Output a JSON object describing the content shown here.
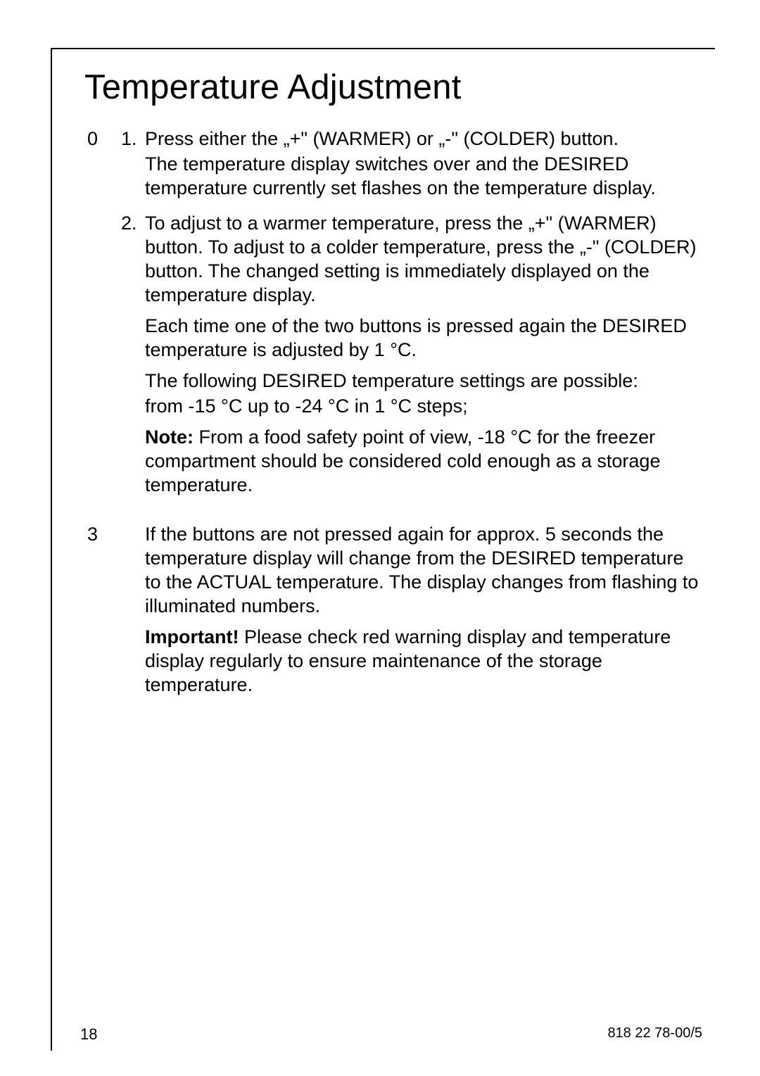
{
  "title": "Temperature Adjustment",
  "margin_marker": "0",
  "steps": {
    "one": {
      "num": "1.",
      "line1": "Press either the „+\" (WARMER) or „-\" (COLDER) button.",
      "line2": "The temperature display switches over and the DESIRED temperature currently set flashes on the temperature display."
    },
    "two": {
      "num": "2.",
      "line1": "To adjust to a warmer temperature, press the „+\" (WARMER) button. To adjust to a colder temperature, press the „-\" (COLDER) button. The changed setting is immediately displayed on the temperature display.",
      "line2": "Each time one of the two buttons is pressed again the DESIRED temperature is adjusted by 1 °C.",
      "line3": "The following DESIRED temperature settings are possible:",
      "line4": "from -15 °C up to -24 °C in 1 °C steps;",
      "note_label": "Note:",
      "note_text": " From a food safety point of view, -18 °C for the freezer compartment should be considered cold enough as a storage temperature."
    }
  },
  "info_marker": "3",
  "info": {
    "line1": "If the buttons are not pressed again for approx. 5 seconds the temperature display will change from the DESIRED temperature to the ACTUAL temperature. The display changes from flashing to illuminated numbers.",
    "imp_label": "Important!",
    "imp_text": "  Please check red warning display and temperature display regularly to ensure maintenance of the storage temperature."
  },
  "footer": {
    "page": "18",
    "doc": "818 22 78-00/5"
  }
}
